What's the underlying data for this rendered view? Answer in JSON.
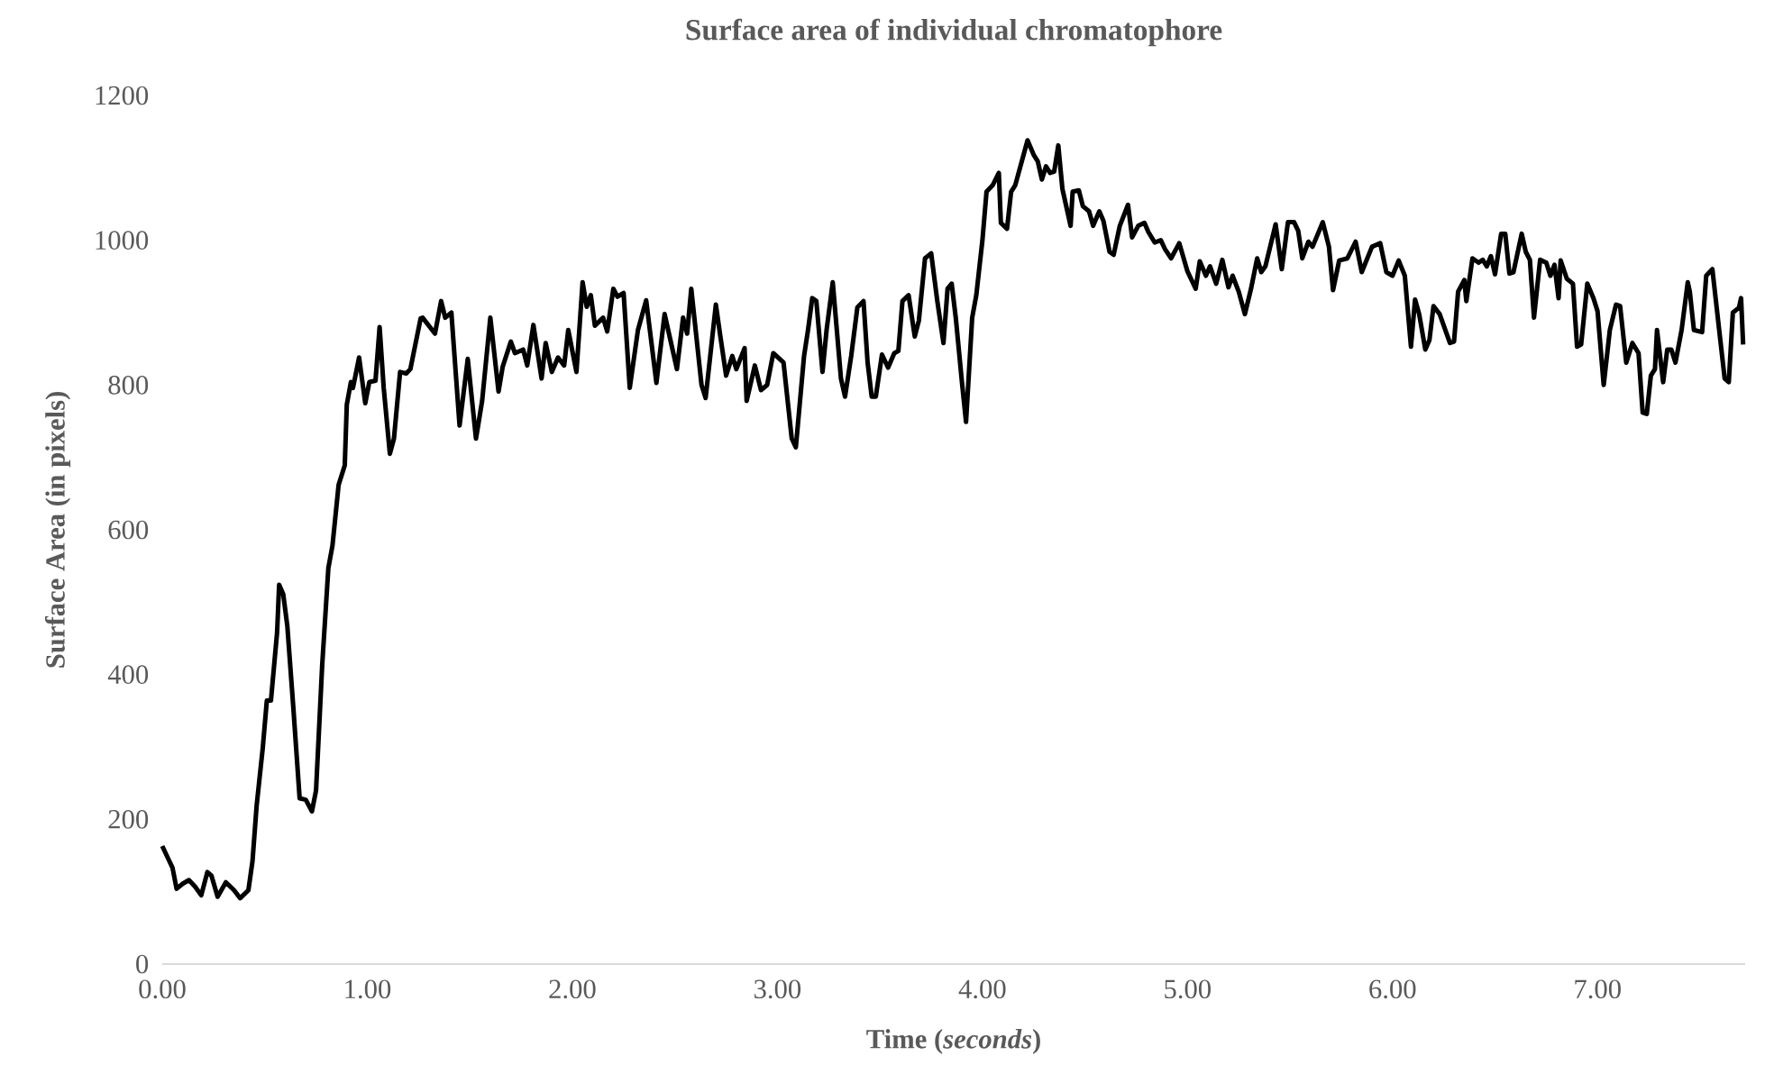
{
  "chart_data": {
    "type": "line",
    "title": "Surface area of individual chromatophore",
    "xlabel": "Time (*seconds*)",
    "ylabel": "Surface Area (in pixels)",
    "xlim": [
      0,
      7.72
    ],
    "ylim": [
      0,
      1200
    ],
    "xticks": [
      {
        "value": 0,
        "label": "0.00"
      },
      {
        "value": 1,
        "label": "1.00"
      },
      {
        "value": 2,
        "label": "2.00"
      },
      {
        "value": 3,
        "label": "3.00"
      },
      {
        "value": 4,
        "label": "4.00"
      },
      {
        "value": 5,
        "label": "5.00"
      },
      {
        "value": 6,
        "label": "6.00"
      },
      {
        "value": 7,
        "label": "7.00"
      }
    ],
    "yticks": [
      0,
      200,
      400,
      600,
      800,
      1000,
      1200
    ],
    "x": [
      0,
      0.03,
      0.05,
      0.07,
      0.1,
      0.13,
      0.16,
      0.19,
      0.22,
      0.24,
      0.27,
      0.31,
      0.35,
      0.38,
      0.42,
      0.44,
      0.46,
      0.49,
      0.51,
      0.53,
      0.56,
      0.57,
      0.59,
      0.61,
      0.64,
      0.67,
      0.7,
      0.73,
      0.75,
      0.78,
      0.81,
      0.83,
      0.86,
      0.89,
      0.9,
      0.92,
      0.93,
      0.96,
      0.99,
      1.01,
      1.04,
      1.06,
      1.08,
      1.11,
      1.13,
      1.16,
      1.19,
      1.21,
      1.26,
      1.27,
      1.33,
      1.36,
      1.38,
      1.41,
      1.45,
      1.49,
      1.53,
      1.56,
      1.6,
      1.64,
      1.66,
      1.7,
      1.72,
      1.76,
      1.78,
      1.81,
      1.85,
      1.87,
      1.9,
      1.93,
      1.96,
      1.98,
      2.02,
      2.05,
      2.07,
      2.09,
      2.11,
      2.15,
      2.17,
      2.2,
      2.22,
      2.25,
      2.28,
      2.32,
      2.36,
      2.41,
      2.45,
      2.51,
      2.54,
      2.56,
      2.58,
      2.63,
      2.65,
      2.7,
      2.72,
      2.75,
      2.78,
      2.8,
      2.84,
      2.85,
      2.89,
      2.92,
      2.95,
      2.98,
      3.03,
      3.07,
      3.09,
      3.13,
      3.15,
      3.17,
      3.19,
      3.22,
      3.24,
      3.27,
      3.31,
      3.33,
      3.36,
      3.39,
      3.42,
      3.44,
      3.46,
      3.48,
      3.51,
      3.54,
      3.57,
      3.59,
      3.61,
      3.64,
      3.67,
      3.69,
      3.72,
      3.75,
      3.78,
      3.81,
      3.83,
      3.85,
      3.87,
      3.9,
      3.92,
      3.95,
      3.97,
      4.0,
      4.02,
      4.05,
      4.08,
      4.09,
      4.12,
      4.14,
      4.16,
      4.19,
      4.22,
      4.25,
      4.27,
      4.29,
      4.31,
      4.33,
      4.35,
      4.37,
      4.39,
      4.43,
      4.44,
      4.47,
      4.49,
      4.52,
      4.54,
      4.57,
      4.59,
      4.62,
      4.64,
      4.67,
      4.71,
      4.73,
      4.76,
      4.79,
      4.81,
      4.84,
      4.87,
      4.89,
      4.92,
      4.96,
      5.0,
      5.04,
      5.06,
      5.09,
      5.11,
      5.14,
      5.17,
      5.2,
      5.22,
      5.25,
      5.28,
      5.31,
      5.34,
      5.36,
      5.38,
      5.43,
      5.46,
      5.49,
      5.52,
      5.54,
      5.56,
      5.59,
      5.61,
      5.66,
      5.69,
      5.71,
      5.74,
      5.78,
      5.82,
      5.85,
      5.9,
      5.94,
      5.97,
      6.0,
      6.03,
      6.06,
      6.09,
      6.11,
      6.13,
      6.16,
      6.18,
      6.2,
      6.23,
      6.28,
      6.3,
      6.32,
      6.35,
      6.36,
      6.39,
      6.42,
      6.44,
      6.46,
      6.48,
      6.5,
      6.53,
      6.55,
      6.57,
      6.59,
      6.63,
      6.65,
      6.67,
      6.69,
      6.72,
      6.75,
      6.77,
      6.79,
      6.81,
      6.82,
      6.85,
      6.88,
      6.9,
      6.92,
      6.95,
      6.98,
      7.0,
      7.03,
      7.06,
      7.09,
      7.11,
      7.14,
      7.17,
      7.2,
      7.22,
      7.24,
      7.26,
      7.28,
      7.29,
      7.32,
      7.34,
      7.36,
      7.38,
      7.41,
      7.44,
      7.45,
      7.47,
      7.51,
      7.53,
      7.56,
      7.59,
      7.62,
      7.64,
      7.66,
      7.69,
      7.7,
      7.71
    ],
    "series": [
      {
        "color": "#000000",
        "values": [
          163,
          145,
          133,
          104,
          111,
          116,
          107,
          95,
          127,
          122,
          93,
          113,
          102,
          91,
          102,
          142,
          218,
          298,
          364,
          364,
          458,
          524,
          511,
          467,
          351,
          229,
          227,
          211,
          240,
          413,
          547,
          578,
          662,
          689,
          773,
          804,
          796,
          838,
          775,
          804,
          806,
          880,
          796,
          705,
          726,
          818,
          816,
          822,
          892,
          893,
          871,
          916,
          893,
          900,
          744,
          836,
          726,
          778,
          893,
          791,
          825,
          860,
          844,
          849,
          827,
          883,
          809,
          858,
          818,
          838,
          827,
          876,
          818,
          942,
          908,
          924,
          882,
          893,
          874,
          933,
          922,
          927,
          796,
          876,
          917,
          803,
          898,
          822,
          893,
          871,
          933,
          800,
          782,
          911,
          871,
          813,
          840,
          822,
          851,
          778,
          827,
          793,
          800,
          844,
          831,
          726,
          714,
          840,
          877,
          920,
          916,
          818,
          876,
          942,
          809,
          784,
          840,
          907,
          916,
          831,
          784,
          784,
          842,
          824,
          844,
          847,
          916,
          924,
          867,
          889,
          975,
          982,
          916,
          858,
          933,
          940,
          893,
          804,
          749,
          893,
          924,
          1000,
          1067,
          1076,
          1093,
          1024,
          1016,
          1067,
          1076,
          1107,
          1138,
          1118,
          1109,
          1084,
          1102,
          1093,
          1095,
          1131,
          1071,
          1020,
          1067,
          1069,
          1047,
          1040,
          1020,
          1040,
          1027,
          984,
          980,
          1020,
          1049,
          1004,
          1020,
          1024,
          1011,
          997,
          1000,
          988,
          975,
          996,
          957,
          933,
          971,
          951,
          964,
          940,
          973,
          935,
          951,
          929,
          898,
          933,
          975,
          956,
          964,
          1022,
          960,
          1025,
          1025,
          1013,
          975,
          998,
          991,
          1025,
          991,
          931,
          972,
          975,
          998,
          956,
          991,
          996,
          956,
          951,
          972,
          951,
          853,
          918,
          898,
          849,
          862,
          909,
          898,
          858,
          860,
          929,
          945,
          916,
          975,
          969,
          973,
          964,
          978,
          953,
          1009,
          1009,
          954,
          956,
          1009,
          984,
          973,
          893,
          973,
          969,
          951,
          966,
          920,
          972,
          947,
          940,
          853,
          856,
          940,
          920,
          902,
          800,
          876,
          911,
          909,
          831,
          858,
          844,
          762,
          760,
          813,
          822,
          876,
          804,
          849,
          849,
          831,
          876,
          942,
          929,
          876,
          873,
          951,
          960,
          884,
          809,
          804,
          900,
          907,
          920,
          856
        ]
      }
    ]
  }
}
